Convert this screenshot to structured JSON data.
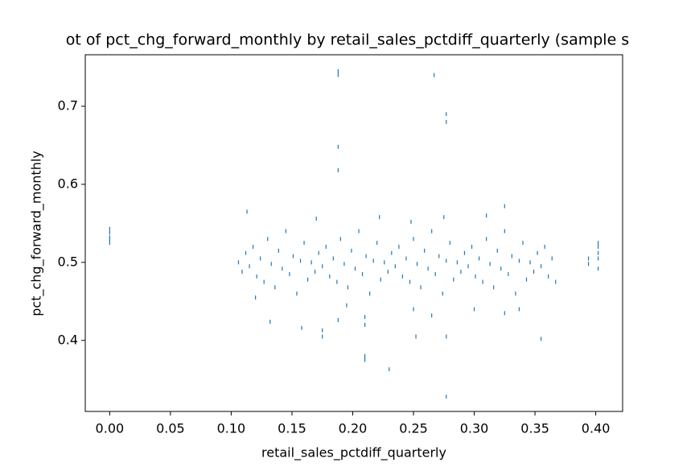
{
  "chart_data": {
    "type": "scatter",
    "title": "ot of pct_chg_forward_monthly by retail_sales_pctdiff_quarterly (sample s",
    "xlabel": "retail_sales_pctdiff_quarterly",
    "ylabel": "pct_chg_forward_monthly",
    "color": "#1f77b4",
    "xlim": [
      -0.0201,
      0.4221
    ],
    "ylim": [
      0.309,
      0.766
    ],
    "xticks": [
      {
        "value": 0,
        "label": "0.00"
      },
      {
        "value": 0.05,
        "label": "0.05"
      },
      {
        "value": 0.1,
        "label": "0.10"
      },
      {
        "value": 0.15,
        "label": "0.15"
      },
      {
        "value": 0.2,
        "label": "0.20"
      },
      {
        "value": 0.25,
        "label": "0.25"
      },
      {
        "value": 0.3,
        "label": "0.30"
      },
      {
        "value": 0.35,
        "label": "0.35"
      },
      {
        "value": 0.4,
        "label": "0.40"
      }
    ],
    "yticks": [
      0.4,
      0.5,
      0.6,
      0.7
    ],
    "x": [
      0,
      0,
      0,
      0,
      0,
      0.394,
      0.394,
      0.402,
      0.402,
      0.402,
      0.402,
      0.402,
      0.188,
      0.188,
      0.267,
      0.277,
      0.277,
      0.188,
      0.188,
      0.113,
      0.21,
      0.21,
      0.23,
      0.277,
      0.355,
      0.175,
      0.175,
      0.158,
      0.252,
      0.21,
      0.21,
      0.132,
      0.12,
      0.3,
      0.325,
      0.337,
      0.277,
      0.25,
      0.265,
      0.188,
      0.195,
      0.31,
      0.222,
      0.275,
      0.325,
      0.17,
      0.248,
      0.106,
      0.109,
      0.112,
      0.115,
      0.118,
      0.121,
      0.124,
      0.127,
      0.13,
      0.133,
      0.136,
      0.139,
      0.142,
      0.145,
      0.148,
      0.151,
      0.154,
      0.157,
      0.16,
      0.163,
      0.166,
      0.169,
      0.172,
      0.175,
      0.178,
      0.181,
      0.184,
      0.187,
      0.19,
      0.193,
      0.196,
      0.199,
      0.202,
      0.205,
      0.208,
      0.211,
      0.214,
      0.217,
      0.22,
      0.223,
      0.226,
      0.229,
      0.232,
      0.235,
      0.238,
      0.241,
      0.244,
      0.247,
      0.25,
      0.253,
      0.256,
      0.259,
      0.262,
      0.265,
      0.268,
      0.271,
      0.274,
      0.277,
      0.28,
      0.283,
      0.286,
      0.289,
      0.292,
      0.295,
      0.298,
      0.301,
      0.304,
      0.307,
      0.31,
      0.313,
      0.316,
      0.319,
      0.322,
      0.325,
      0.328,
      0.331,
      0.334,
      0.337,
      0.34,
      0.343,
      0.346,
      0.349,
      0.352,
      0.355,
      0.358,
      0.361,
      0.364,
      0.367
    ],
    "values": [
      0.525,
      0.532,
      0.538,
      0.543,
      0.529,
      0.498,
      0.505,
      0.492,
      0.505,
      0.512,
      0.52,
      0.525,
      0.745,
      0.74,
      0.74,
      0.69,
      0.68,
      0.648,
      0.618,
      0.565,
      0.38,
      0.375,
      0.363,
      0.328,
      0.402,
      0.405,
      0.413,
      0.416,
      0.405,
      0.42,
      0.43,
      0.424,
      0.455,
      0.44,
      0.435,
      0.44,
      0.405,
      0.44,
      0.432,
      0.426,
      0.445,
      0.56,
      0.558,
      0.558,
      0.572,
      0.556,
      0.552,
      0.5,
      0.488,
      0.512,
      0.495,
      0.52,
      0.482,
      0.505,
      0.475,
      0.53,
      0.498,
      0.468,
      0.515,
      0.492,
      0.54,
      0.485,
      0.508,
      0.46,
      0.502,
      0.525,
      0.478,
      0.5,
      0.488,
      0.512,
      0.495,
      0.52,
      0.482,
      0.505,
      0.475,
      0.53,
      0.498,
      0.468,
      0.515,
      0.492,
      0.54,
      0.485,
      0.508,
      0.46,
      0.502,
      0.525,
      0.478,
      0.5,
      0.488,
      0.512,
      0.495,
      0.52,
      0.482,
      0.505,
      0.475,
      0.53,
      0.498,
      0.468,
      0.515,
      0.492,
      0.54,
      0.485,
      0.508,
      0.46,
      0.502,
      0.525,
      0.478,
      0.5,
      0.488,
      0.512,
      0.495,
      0.52,
      0.482,
      0.505,
      0.475,
      0.53,
      0.498,
      0.468,
      0.515,
      0.492,
      0.54,
      0.485,
      0.508,
      0.46,
      0.502,
      0.525,
      0.478,
      0.5,
      0.488,
      0.512,
      0.495,
      0.52,
      0.482,
      0.505,
      0.475
    ]
  }
}
